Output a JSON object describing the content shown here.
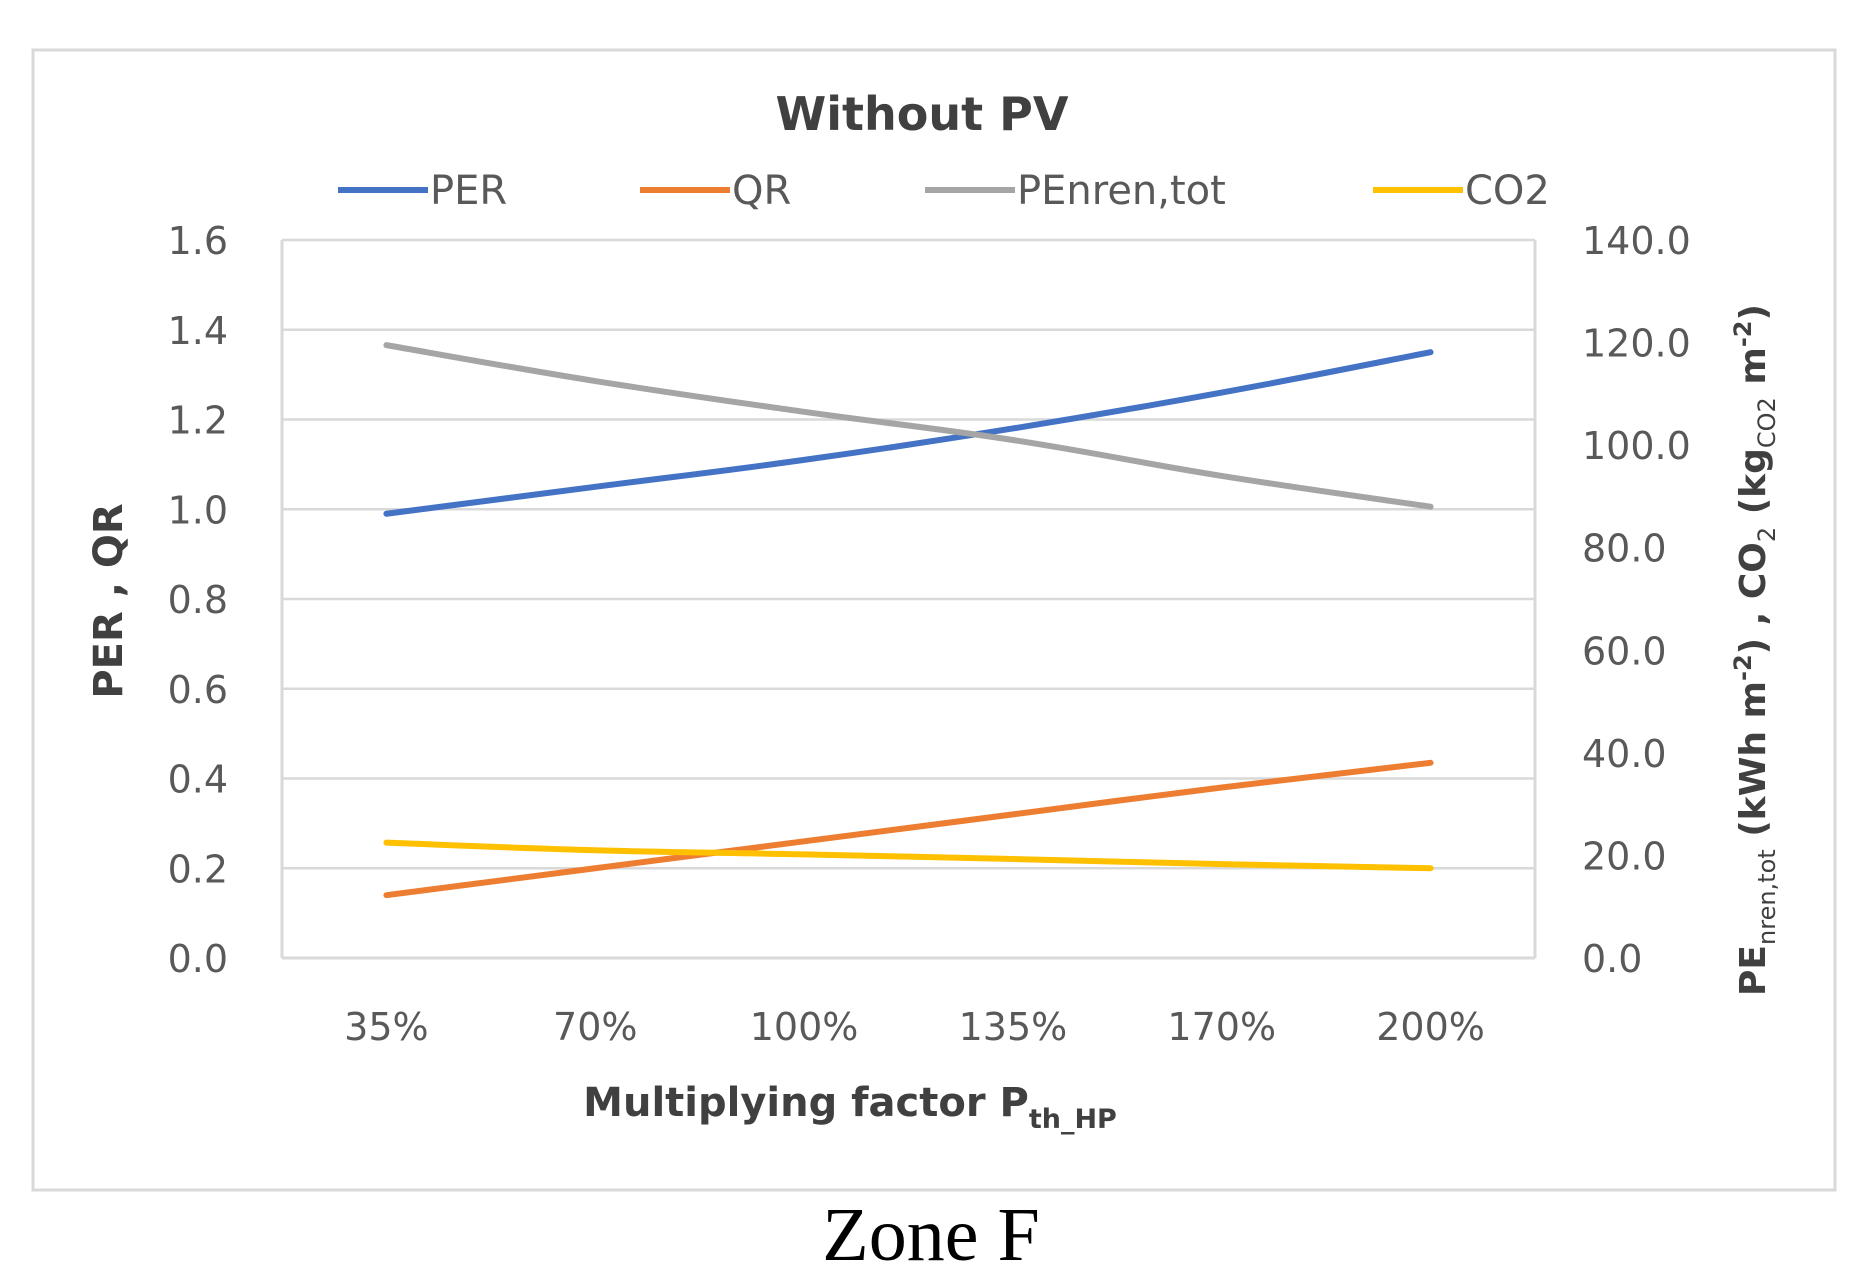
{
  "caption": "Zone F",
  "chart_data": {
    "type": "line",
    "title": "Without PV",
    "categories": [
      "35%",
      "70%",
      "100%",
      "135%",
      "170%",
      "200%"
    ],
    "xlabel": {
      "main": "Multiplying factor P",
      "sub": "th_HP"
    },
    "ylabel": "PER , QR",
    "y2label": {
      "p1": "PE",
      "p1sub": "nren,tot",
      "p2": " (kWh m",
      "p2sup": "-2",
      "p3": ")  ,  CO",
      "p3sub": "2",
      "p4": "  (kg",
      "p4sub": "CO2",
      "p5": " m",
      "p5sup": "-2",
      "p6": ")"
    },
    "ylim": [
      0,
      1.6
    ],
    "yticks": [
      "0.0",
      "0.2",
      "0.4",
      "0.6",
      "0.8",
      "1.0",
      "1.2",
      "1.4",
      "1.6"
    ],
    "y2lim": [
      0,
      140
    ],
    "y2ticks": [
      "0.0",
      "20.0",
      "40.0",
      "60.0",
      "80.0",
      "100.0",
      "120.0",
      "140.0"
    ],
    "grid": true,
    "legend_position": "top",
    "series": [
      {
        "name": "PER",
        "axis": "left",
        "color": "#4472C4",
        "values": [
          0.99,
          1.05,
          1.11,
          1.18,
          1.26,
          1.35
        ]
      },
      {
        "name": "QR",
        "axis": "left",
        "color": "#ED7D31",
        "values": [
          0.14,
          0.2,
          0.26,
          0.32,
          0.38,
          0.435
        ]
      },
      {
        "name": "PEnren,tot",
        "axis": "right",
        "color": "#A5A5A5",
        "values": [
          119.5,
          112.5,
          106.5,
          101.0,
          94.0,
          88.0
        ]
      },
      {
        "name": "CO2",
        "axis": "right",
        "color": "#FFC000",
        "values": [
          22.5,
          21.0,
          20.2,
          19.3,
          18.3,
          17.5
        ]
      }
    ]
  }
}
